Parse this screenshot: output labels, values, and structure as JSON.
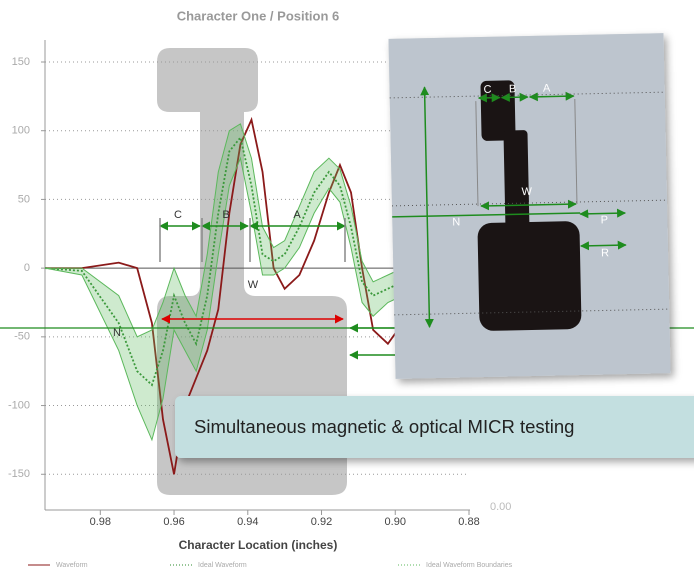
{
  "chart_data": {
    "type": "line",
    "title": "Character One / Position 6",
    "x_label": "Character Location (inches)",
    "x": [
      0.995,
      0.985,
      0.975,
      0.97,
      0.966,
      0.963,
      0.96,
      0.957,
      0.954,
      0.951,
      0.948,
      0.945,
      0.942,
      0.939,
      0.936,
      0.933,
      0.93,
      0.926,
      0.922,
      0.918,
      0.915,
      0.912,
      0.909,
      0.906,
      0.902,
      0.898
    ],
    "series": [
      {
        "name": "Waveform",
        "color": "#8b1a1a",
        "style": "solid",
        "values": [
          0,
          0,
          4,
          0,
          -40,
          -110,
          -150,
          -100,
          -80,
          -60,
          -30,
          40,
          90,
          108,
          70,
          0,
          -15,
          -5,
          20,
          55,
          75,
          55,
          0,
          -45,
          -55,
          -40
        ]
      },
      {
        "name": "Ideal Waveform",
        "color": "#2e8b2e",
        "style": "dotted",
        "values": [
          0,
          -2,
          -40,
          -75,
          -85,
          -60,
          -20,
          -40,
          -55,
          -20,
          40,
          85,
          95,
          60,
          10,
          5,
          10,
          30,
          55,
          70,
          60,
          30,
          -10,
          -20,
          -15,
          -10
        ]
      },
      {
        "name": "Ideal Waveform Boundaries",
        "color": "#5cb85c",
        "style": "band",
        "values": [
          0,
          0,
          -20,
          -50,
          -45,
          -25,
          0,
          -20,
          -35,
          10,
          70,
          100,
          105,
          80,
          30,
          15,
          20,
          45,
          70,
          80,
          72,
          45,
          5,
          -10,
          -5,
          0
        ],
        "lower": [
          0,
          -5,
          -60,
          -100,
          -125,
          -95,
          -45,
          -60,
          -75,
          -45,
          10,
          60,
          80,
          40,
          -5,
          -5,
          0,
          15,
          40,
          58,
          48,
          15,
          -25,
          -35,
          -25,
          -20
        ]
      }
    ],
    "xlim": [
      0.995,
      0.88
    ],
    "xticks": [
      0.98,
      0.96,
      0.94,
      0.92,
      {
        "value": 0.9,
        "label": "0.90"
      },
      0.88
    ],
    "ylim": [
      -176,
      166
    ],
    "yticks": [
      150,
      100,
      50,
      0,
      -50,
      -100,
      -150
    ],
    "grid": true,
    "annotations": [
      "C",
      "B",
      "A",
      "W",
      "N",
      "0.00"
    ]
  },
  "overlay": {
    "labels": [
      "C",
      "B",
      "A",
      "W",
      "N",
      "P",
      "R"
    ],
    "caption": "Simultaneous magnetic & optical MICR testing"
  }
}
